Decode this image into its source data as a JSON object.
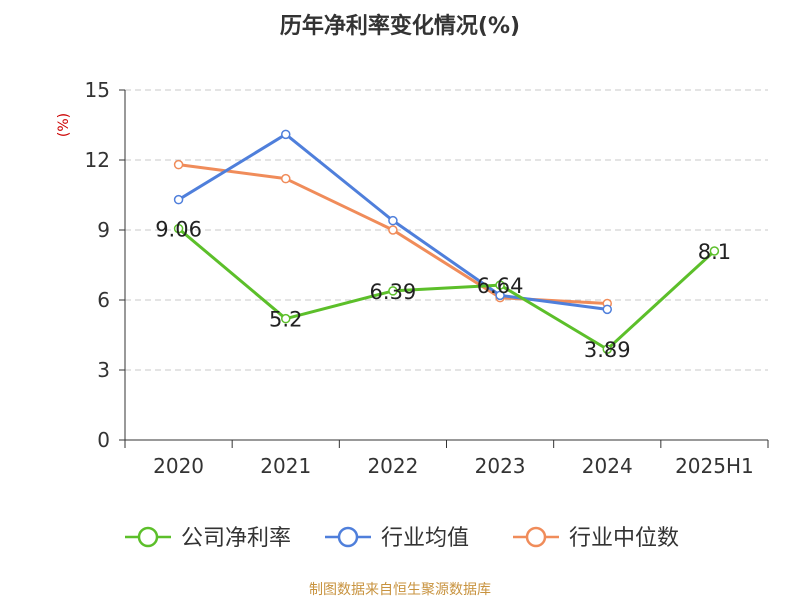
{
  "chart_data": {
    "type": "line",
    "title": "历年净利率变化情况(%)",
    "ylabel": "(%)",
    "categories": [
      "2020",
      "2021",
      "2022",
      "2023",
      "2024",
      "2025H1"
    ],
    "ylim": [
      0,
      15
    ],
    "yticks": [
      0,
      3,
      6,
      9,
      12,
      15
    ],
    "grid": true,
    "legend_position": "bottom",
    "series": [
      {
        "name": "公司净利率",
        "color": "#5cbf2a",
        "values": [
          9.06,
          5.2,
          6.39,
          6.64,
          3.89,
          8.1
        ],
        "labels": [
          "9.06",
          "5.2",
          "6.39",
          "6.64",
          "3.89",
          "8.1"
        ]
      },
      {
        "name": "行业均值",
        "color": "#4f7fdb",
        "values": [
          10.3,
          13.1,
          9.4,
          6.2,
          5.6,
          null
        ]
      },
      {
        "name": "行业中位数",
        "color": "#f08c5a",
        "values": [
          11.8,
          11.2,
          9.0,
          6.1,
          5.85,
          null
        ]
      }
    ],
    "source": "制图数据来自恒生聚源数据库"
  }
}
